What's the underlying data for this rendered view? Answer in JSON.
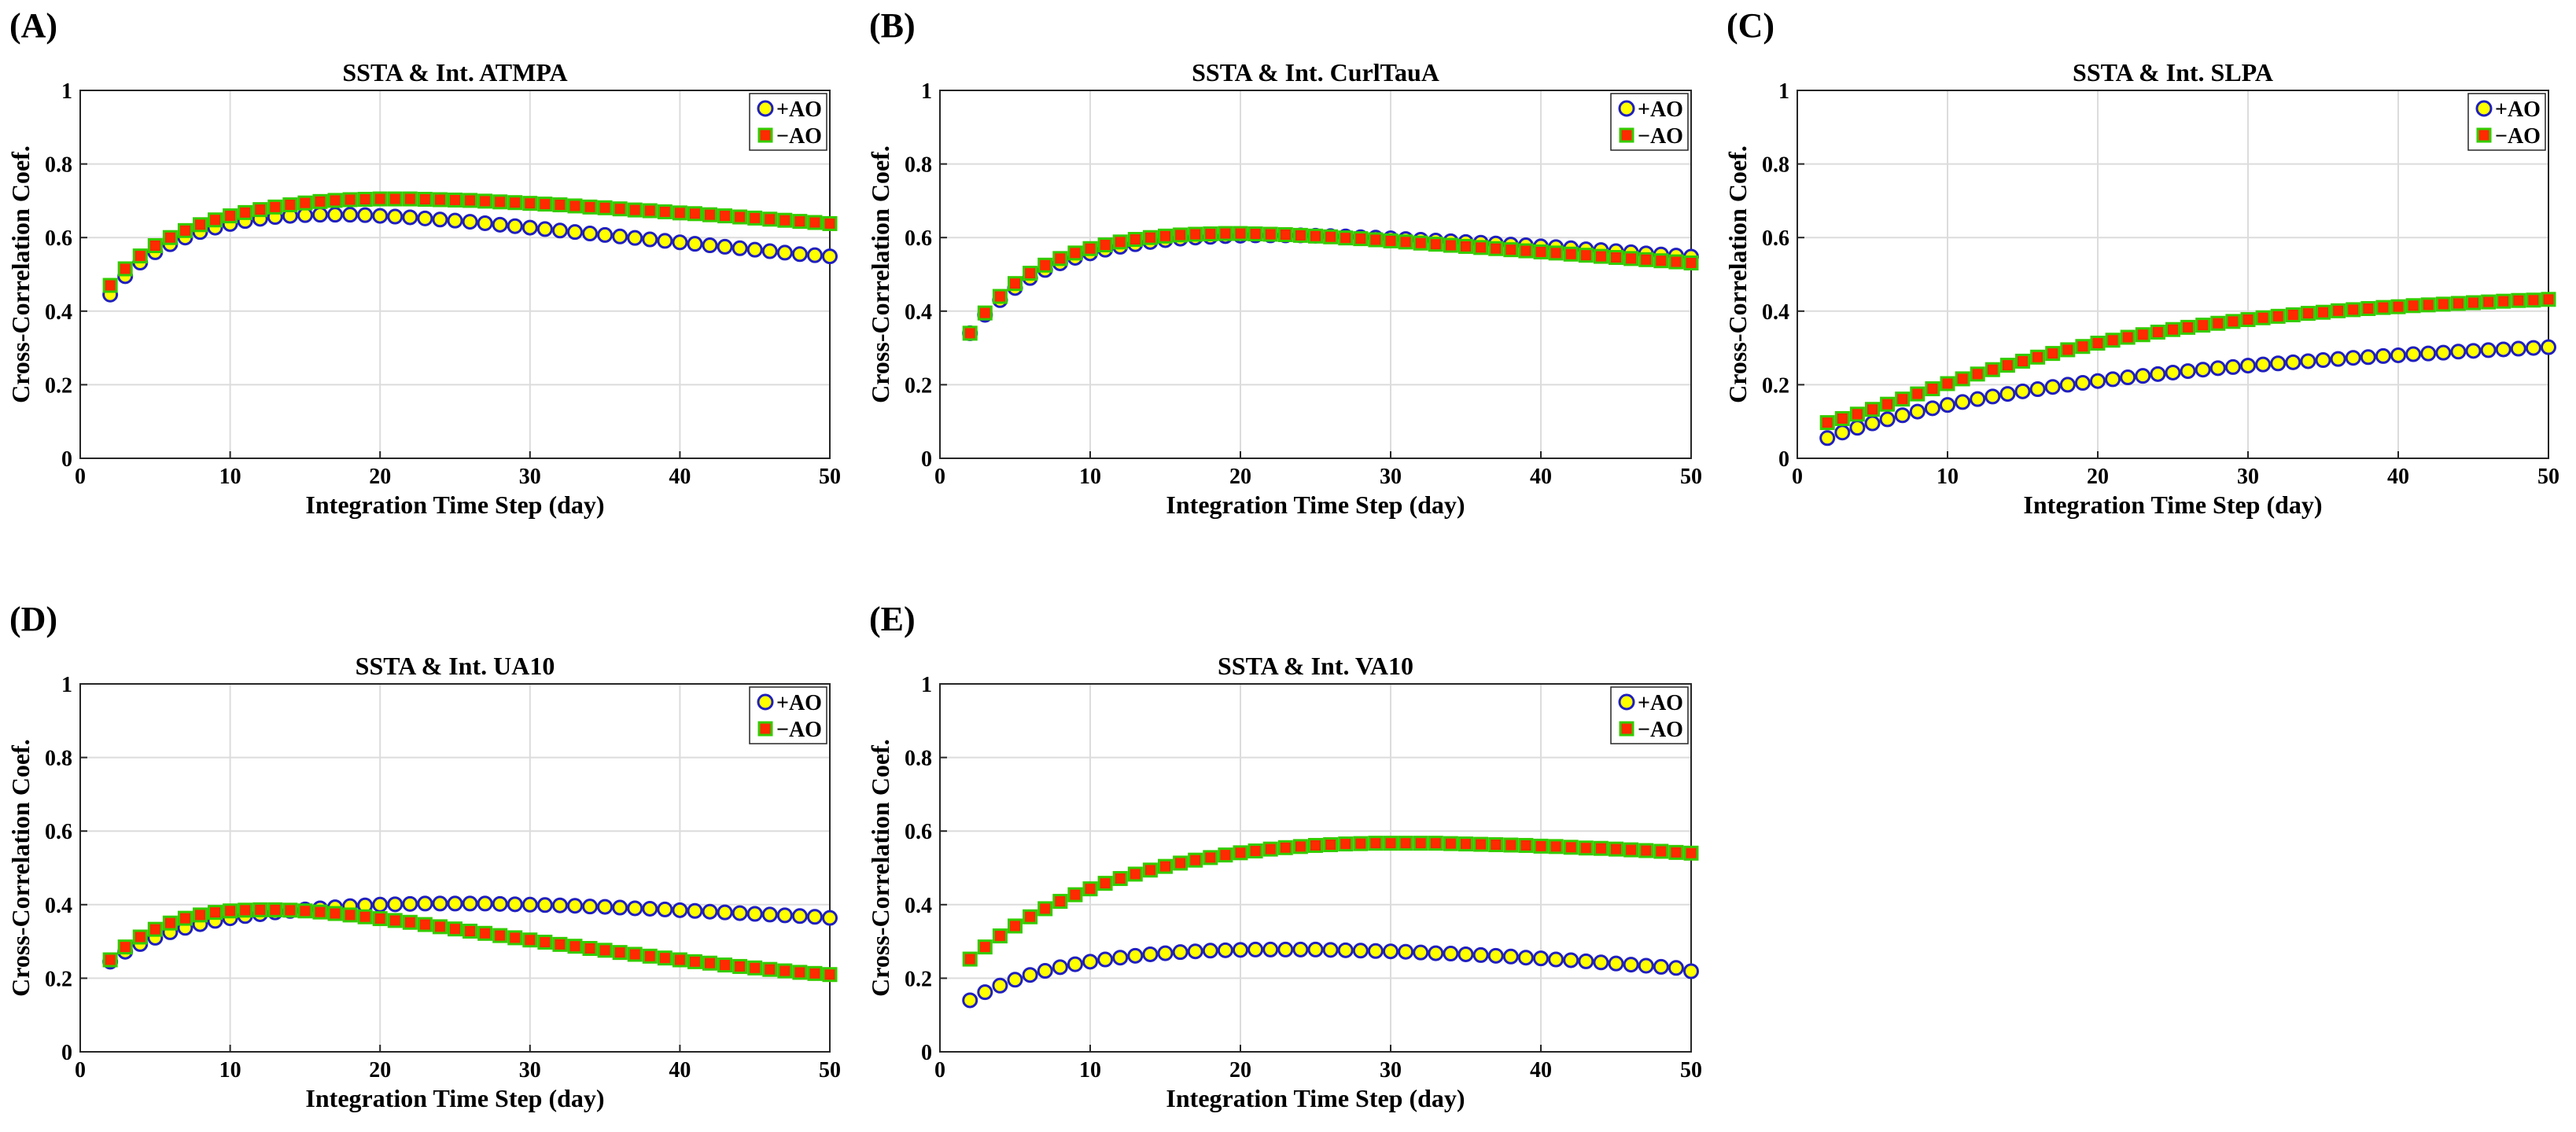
{
  "chart_data": [
    {
      "panel": "(A)",
      "type": "scatter",
      "title": "SSTA & Int. ATMPA",
      "xlabel": "Integration Time Step (day)",
      "ylabel": "Cross-Correlation Coef.",
      "xlim": [
        0,
        50
      ],
      "ylim": [
        0,
        1
      ],
      "xticks": [
        "0",
        "10",
        "20",
        "30",
        "40",
        "50"
      ],
      "yticks": [
        "0",
        "0.2",
        "0.4",
        "0.6",
        "0.8",
        "1"
      ],
      "grid": true,
      "legend": "top-right",
      "x_start": 2,
      "x_step": 1,
      "series": [
        {
          "name": "+AO",
          "marker": "circle",
          "color": "#ffff00",
          "edge": "#1f1fbf",
          "values": [
            0.445,
            0.495,
            0.532,
            0.56,
            0.582,
            0.6,
            0.615,
            0.627,
            0.637,
            0.645,
            0.651,
            0.656,
            0.659,
            0.661,
            0.662,
            0.662,
            0.662,
            0.661,
            0.659,
            0.657,
            0.655,
            0.652,
            0.649,
            0.646,
            0.643,
            0.639,
            0.635,
            0.631,
            0.627,
            0.623,
            0.619,
            0.615,
            0.611,
            0.607,
            0.603,
            0.599,
            0.595,
            0.591,
            0.587,
            0.583,
            0.579,
            0.575,
            0.571,
            0.567,
            0.563,
            0.559,
            0.555,
            0.552,
            0.549
          ]
        },
        {
          "name": "−AO",
          "marker": "square",
          "color": "#ff2a00",
          "edge": "#33cc00",
          "values": [
            0.47,
            0.515,
            0.55,
            0.578,
            0.6,
            0.619,
            0.635,
            0.648,
            0.659,
            0.668,
            0.676,
            0.683,
            0.689,
            0.694,
            0.698,
            0.701,
            0.703,
            0.704,
            0.705,
            0.705,
            0.705,
            0.704,
            0.703,
            0.702,
            0.701,
            0.699,
            0.697,
            0.695,
            0.693,
            0.691,
            0.689,
            0.686,
            0.683,
            0.681,
            0.678,
            0.675,
            0.673,
            0.67,
            0.667,
            0.665,
            0.662,
            0.659,
            0.656,
            0.653,
            0.65,
            0.647,
            0.644,
            0.641,
            0.638
          ]
        }
      ]
    },
    {
      "panel": "(B)",
      "type": "scatter",
      "title": "SSTA & Int. CurlTauA",
      "xlabel": "Integration Time Step (day)",
      "ylabel": "Cross-Correlation Coef.",
      "xlim": [
        0,
        50
      ],
      "ylim": [
        0,
        1
      ],
      "xticks": [
        "0",
        "10",
        "20",
        "30",
        "40",
        "50"
      ],
      "yticks": [
        "0",
        "0.2",
        "0.4",
        "0.6",
        "0.8",
        "1"
      ],
      "grid": true,
      "legend": "top-right",
      "x_start": 2,
      "x_step": 1,
      "series": [
        {
          "name": "+AO",
          "marker": "circle",
          "color": "#ffff00",
          "edge": "#1f1fbf",
          "values": [
            0.34,
            0.39,
            0.43,
            0.463,
            0.49,
            0.512,
            0.53,
            0.545,
            0.557,
            0.567,
            0.575,
            0.582,
            0.588,
            0.593,
            0.597,
            0.6,
            0.602,
            0.604,
            0.605,
            0.606,
            0.606,
            0.606,
            0.606,
            0.605,
            0.604,
            0.603,
            0.601,
            0.6,
            0.598,
            0.596,
            0.594,
            0.592,
            0.59,
            0.588,
            0.586,
            0.584,
            0.581,
            0.579,
            0.576,
            0.574,
            0.571,
            0.568,
            0.566,
            0.563,
            0.56,
            0.557,
            0.554,
            0.551,
            0.548
          ]
        },
        {
          "name": "−AO",
          "marker": "square",
          "color": "#ff2a00",
          "edge": "#33cc00",
          "values": [
            0.34,
            0.395,
            0.44,
            0.475,
            0.503,
            0.525,
            0.543,
            0.558,
            0.57,
            0.58,
            0.588,
            0.595,
            0.6,
            0.604,
            0.607,
            0.609,
            0.61,
            0.611,
            0.611,
            0.61,
            0.609,
            0.608,
            0.606,
            0.604,
            0.602,
            0.599,
            0.597,
            0.594,
            0.591,
            0.588,
            0.585,
            0.582,
            0.579,
            0.576,
            0.573,
            0.57,
            0.567,
            0.564,
            0.561,
            0.558,
            0.555,
            0.552,
            0.549,
            0.546,
            0.543,
            0.54,
            0.537,
            0.534,
            0.531
          ]
        }
      ]
    },
    {
      "panel": "(C)",
      "type": "scatter",
      "title": "SSTA & Int. SLPA",
      "xlabel": "Integration Time Step (day)",
      "ylabel": "Cross-Correlation Coef.",
      "xlim": [
        0,
        50
      ],
      "ylim": [
        0,
        1
      ],
      "xticks": [
        "0",
        "10",
        "20",
        "30",
        "40",
        "50"
      ],
      "yticks": [
        "0",
        "0.2",
        "0.4",
        "0.6",
        "0.8",
        "1"
      ],
      "grid": true,
      "legend": "top-right",
      "x_start": 2,
      "x_step": 1,
      "series": [
        {
          "name": "+AO",
          "marker": "circle",
          "color": "#ffff00",
          "edge": "#1f1fbf",
          "values": [
            0.055,
            0.07,
            0.083,
            0.095,
            0.106,
            0.117,
            0.127,
            0.136,
            0.145,
            0.153,
            0.161,
            0.168,
            0.175,
            0.182,
            0.188,
            0.194,
            0.2,
            0.205,
            0.21,
            0.215,
            0.22,
            0.224,
            0.229,
            0.233,
            0.237,
            0.241,
            0.245,
            0.248,
            0.252,
            0.255,
            0.258,
            0.261,
            0.264,
            0.267,
            0.27,
            0.273,
            0.275,
            0.278,
            0.28,
            0.283,
            0.285,
            0.287,
            0.29,
            0.292,
            0.294,
            0.296,
            0.298,
            0.3,
            0.302
          ]
        },
        {
          "name": "−AO",
          "marker": "square",
          "color": "#ff2a00",
          "edge": "#33cc00",
          "values": [
            0.097,
            0.108,
            0.12,
            0.133,
            0.147,
            0.161,
            0.175,
            0.189,
            0.203,
            0.216,
            0.229,
            0.241,
            0.253,
            0.264,
            0.275,
            0.285,
            0.295,
            0.304,
            0.313,
            0.321,
            0.329,
            0.336,
            0.343,
            0.35,
            0.356,
            0.362,
            0.367,
            0.372,
            0.377,
            0.382,
            0.386,
            0.39,
            0.394,
            0.397,
            0.401,
            0.404,
            0.407,
            0.41,
            0.412,
            0.415,
            0.417,
            0.419,
            0.421,
            0.423,
            0.425,
            0.427,
            0.429,
            0.43,
            0.432
          ]
        }
      ]
    },
    {
      "panel": "(D)",
      "type": "scatter",
      "title": "SSTA & Int. UA10",
      "xlabel": "Integration Time Step (day)",
      "ylabel": "Cross-Correlation Coef.",
      "xlim": [
        0,
        50
      ],
      "ylim": [
        0,
        1
      ],
      "xticks": [
        "0",
        "10",
        "20",
        "30",
        "40",
        "50"
      ],
      "yticks": [
        "0",
        "0.2",
        "0.4",
        "0.6",
        "0.8",
        "1"
      ],
      "grid": true,
      "legend": "top-right",
      "x_start": 2,
      "x_step": 1,
      "series": [
        {
          "name": "+AO",
          "marker": "circle",
          "color": "#ffff00",
          "edge": "#1f1fbf",
          "values": [
            0.245,
            0.272,
            0.293,
            0.31,
            0.325,
            0.337,
            0.347,
            0.356,
            0.363,
            0.369,
            0.374,
            0.379,
            0.383,
            0.387,
            0.39,
            0.393,
            0.396,
            0.398,
            0.4,
            0.401,
            0.402,
            0.403,
            0.403,
            0.403,
            0.403,
            0.403,
            0.402,
            0.401,
            0.4,
            0.399,
            0.398,
            0.397,
            0.395,
            0.394,
            0.392,
            0.39,
            0.389,
            0.387,
            0.385,
            0.383,
            0.381,
            0.379,
            0.377,
            0.375,
            0.373,
            0.371,
            0.369,
            0.367,
            0.364
          ]
        },
        {
          "name": "−AO",
          "marker": "square",
          "color": "#ff2a00",
          "edge": "#33cc00",
          "values": [
            0.25,
            0.285,
            0.312,
            0.333,
            0.35,
            0.363,
            0.372,
            0.379,
            0.383,
            0.385,
            0.386,
            0.386,
            0.385,
            0.383,
            0.38,
            0.376,
            0.372,
            0.367,
            0.362,
            0.357,
            0.352,
            0.346,
            0.34,
            0.334,
            0.328,
            0.322,
            0.316,
            0.31,
            0.304,
            0.298,
            0.292,
            0.287,
            0.281,
            0.276,
            0.27,
            0.265,
            0.26,
            0.255,
            0.25,
            0.245,
            0.241,
            0.236,
            0.232,
            0.228,
            0.224,
            0.22,
            0.216,
            0.213,
            0.21
          ]
        }
      ]
    },
    {
      "panel": "(E)",
      "type": "scatter",
      "title": "SSTA & Int. VA10",
      "xlabel": "Integration Time Step (day)",
      "ylabel": "Cross-Correlation Coef.",
      "xlim": [
        0,
        50
      ],
      "ylim": [
        0,
        1
      ],
      "xticks": [
        "0",
        "10",
        "20",
        "30",
        "40",
        "50"
      ],
      "yticks": [
        "0",
        "0.2",
        "0.4",
        "0.6",
        "0.8",
        "1"
      ],
      "grid": true,
      "legend": "top-right",
      "x_start": 2,
      "x_step": 1,
      "series": [
        {
          "name": "+AO",
          "marker": "circle",
          "color": "#ffff00",
          "edge": "#1f1fbf",
          "values": [
            0.14,
            0.162,
            0.18,
            0.196,
            0.209,
            0.22,
            0.23,
            0.238,
            0.245,
            0.251,
            0.256,
            0.261,
            0.265,
            0.268,
            0.271,
            0.273,
            0.275,
            0.276,
            0.277,
            0.278,
            0.278,
            0.278,
            0.278,
            0.278,
            0.277,
            0.276,
            0.275,
            0.274,
            0.273,
            0.272,
            0.27,
            0.268,
            0.267,
            0.265,
            0.263,
            0.261,
            0.259,
            0.256,
            0.254,
            0.251,
            0.249,
            0.246,
            0.243,
            0.24,
            0.237,
            0.234,
            0.231,
            0.228,
            0.219
          ]
        },
        {
          "name": "−AO",
          "marker": "square",
          "color": "#ff2a00",
          "edge": "#33cc00",
          "values": [
            0.252,
            0.285,
            0.315,
            0.342,
            0.367,
            0.389,
            0.409,
            0.427,
            0.443,
            0.458,
            0.471,
            0.483,
            0.494,
            0.504,
            0.513,
            0.521,
            0.528,
            0.535,
            0.541,
            0.546,
            0.551,
            0.555,
            0.558,
            0.561,
            0.563,
            0.565,
            0.566,
            0.567,
            0.567,
            0.567,
            0.567,
            0.567,
            0.566,
            0.565,
            0.564,
            0.563,
            0.562,
            0.561,
            0.559,
            0.558,
            0.556,
            0.554,
            0.553,
            0.551,
            0.549,
            0.547,
            0.545,
            0.542,
            0.54
          ]
        }
      ]
    }
  ]
}
